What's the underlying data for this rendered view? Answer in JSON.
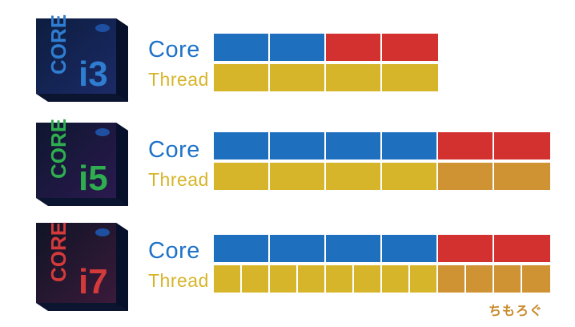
{
  "colors": {
    "core_label": "#1e72c8",
    "thread_label": "#d7b52a",
    "performance_core": "#1f6fbf",
    "efficiency_core": "#d33030",
    "thread_primary": "#d6b52a",
    "thread_secondary": "#cf9334",
    "watermark": "#c98a2a"
  },
  "labels": {
    "core": "Core",
    "thread": "Thread"
  },
  "watermark": "ちもろぐ",
  "products": [
    {
      "brand_text": "CORE",
      "model_text": "i3",
      "box_accent": "#2f7dd0",
      "core_cells": [
        "blue",
        "blue",
        "red",
        "red"
      ],
      "thread_cells": [
        "yellow",
        "yellow",
        "yellow",
        "yellow"
      ]
    },
    {
      "brand_text": "CORE",
      "model_text": "i5",
      "box_accent": "#2fae4f",
      "core_cells": [
        "blue",
        "blue",
        "blue",
        "blue",
        "red",
        "red"
      ],
      "thread_cells": [
        "yellow",
        "yellow",
        "yellow",
        "yellow",
        "orange",
        "orange"
      ]
    },
    {
      "brand_text": "CORE",
      "model_text": "i7",
      "box_accent": "#d43a3a",
      "core_cells": [
        "blue",
        "blue",
        "blue",
        "blue",
        "red",
        "red"
      ],
      "thread_cells": [
        "yellow",
        "yellow",
        "yellow",
        "yellow",
        "yellow",
        "yellow",
        "yellow",
        "yellow",
        "orange",
        "orange",
        "orange",
        "orange"
      ]
    }
  ]
}
